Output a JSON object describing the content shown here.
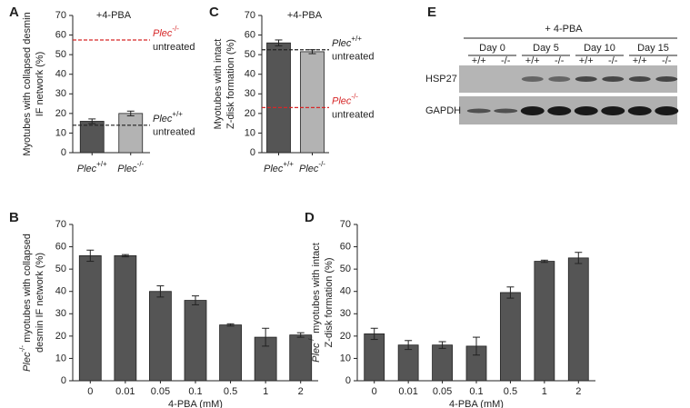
{
  "chart_data": [
    {
      "type": "bar",
      "panel": "A",
      "annotation": "+4-PBA",
      "ylabel": [
        "Myotubes with collapsed desmin",
        "IF network (%)"
      ],
      "categories": [
        {
          "italic": "Plec",
          "sup": "+/+"
        },
        {
          "italic": "Plec",
          "sup": "-/-"
        }
      ],
      "values": [
        16,
        20
      ],
      "errors": [
        1.2,
        1.2
      ],
      "colors": [
        "#555555",
        "#b3b3b3"
      ],
      "ylim": [
        0,
        70
      ],
      "yticks": [
        0,
        10,
        20,
        30,
        40,
        50,
        60,
        70
      ],
      "reference_lines": [
        {
          "value": 57.5,
          "color": "#d62728",
          "label": {
            "italic": "Plec",
            "sup": "-/-",
            "line2": "untreated"
          }
        },
        {
          "value": 14,
          "color": "#222222",
          "label": {
            "italic": "Plec",
            "sup": "+/+",
            "line2": "untreated"
          }
        }
      ]
    },
    {
      "type": "bar",
      "panel": "C",
      "annotation": "+4-PBA",
      "ylabel": [
        "Myotubes with intact",
        "Z-disk formation (%)"
      ],
      "categories": [
        {
          "italic": "Plec",
          "sup": "+/+"
        },
        {
          "italic": "Plec",
          "sup": "-/-"
        }
      ],
      "values": [
        56,
        51.5
      ],
      "errors": [
        1.5,
        1
      ],
      "colors": [
        "#555555",
        "#b3b3b3"
      ],
      "ylim": [
        0,
        70
      ],
      "yticks": [
        0,
        10,
        20,
        30,
        40,
        50,
        60,
        70
      ],
      "reference_lines": [
        {
          "value": 52.5,
          "color": "#222222",
          "label": {
            "italic": "Plec",
            "sup": "+/+",
            "line2": "untreated"
          }
        },
        {
          "value": 23,
          "color": "#d62728",
          "label": {
            "italic": "Plec",
            "sup": "-/-",
            "line2": "untreated"
          }
        }
      ]
    },
    {
      "type": "bar",
      "panel": "B",
      "xlabel": "4-PBA (mM)",
      "ylabel": [
        {
          "italic": "Plec",
          "sup": "-/-",
          "rest": " myotubes with collapsed"
        },
        "desmin IF network (%)"
      ],
      "categories": [
        "0",
        "0.01",
        "0.05",
        "0.1",
        "0.5",
        "1",
        "2"
      ],
      "values": [
        56,
        56,
        40,
        36,
        25,
        19.5,
        20.5
      ],
      "errors": [
        2.5,
        0.5,
        2.5,
        2,
        0.5,
        4,
        1
      ],
      "color": "#555555",
      "ylim": [
        0,
        70
      ],
      "yticks": [
        0,
        10,
        20,
        30,
        40,
        50,
        60,
        70
      ]
    },
    {
      "type": "bar",
      "panel": "D",
      "xlabel": "4-PBA (mM)",
      "ylabel": [
        {
          "italic": "Plec",
          "sup": "-/-",
          "rest": " myotubes with intact"
        },
        "Z-disk formation (%)"
      ],
      "categories": [
        "0",
        "0.01",
        "0.05",
        "0.1",
        "0.5",
        "1",
        "2"
      ],
      "values": [
        21,
        16,
        16,
        15.5,
        39.5,
        53.5,
        55
      ],
      "errors": [
        2.5,
        2,
        1.5,
        4,
        2.5,
        0.5,
        2.5
      ],
      "color": "#555555",
      "ylim": [
        0,
        70
      ],
      "yticks": [
        0,
        10,
        20,
        30,
        40,
        50,
        60,
        70
      ]
    }
  ],
  "blot": {
    "panel": "E",
    "treatment": "+ 4-PBA",
    "days": [
      "Day 0",
      "Day 5",
      "Day 10",
      "Day 15"
    ],
    "genotypes": [
      "+/+",
      "-/-",
      "+/+",
      "-/-",
      "+/+",
      "-/-",
      "+/+",
      "-/-"
    ],
    "rows": [
      "HSP27",
      "GAPDH"
    ]
  }
}
